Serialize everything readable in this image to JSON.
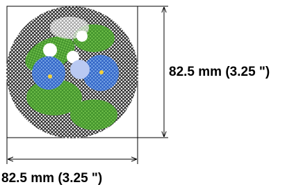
{
  "dimensions": {
    "height_label": "82.5 mm (3.25 \")",
    "width_label": "82.5 mm (3.25 \")"
  }
}
